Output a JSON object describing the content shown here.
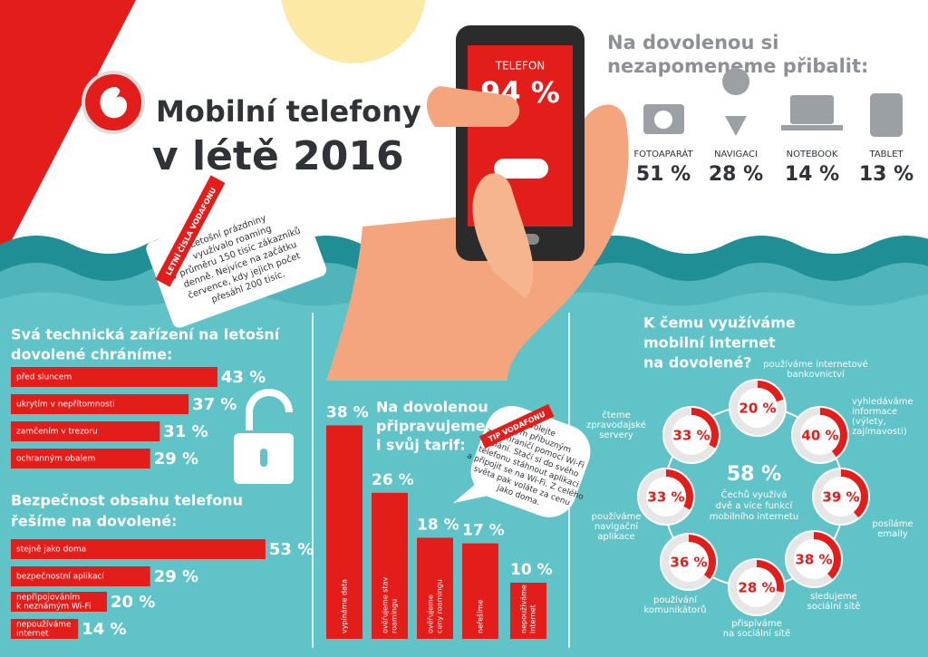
{
  "header": {
    "title_line1": "Mobilní telefony",
    "title_line2": "v létě 2016"
  },
  "phone": {
    "label": "TELEFON",
    "value": 94,
    "value_label": "94 %"
  },
  "packing": {
    "title_line1": "Na dovolenou si",
    "title_line2": "nezapomeneme přibalit:",
    "items": [
      {
        "label": "FOTOAPARÁT",
        "value": 51,
        "value_label": "51 %"
      },
      {
        "label": "NAVIGACI",
        "value": 28,
        "value_label": "28 %"
      },
      {
        "label": "NOTEBOOK",
        "value": 14,
        "value_label": "14 %"
      },
      {
        "label": "TABLET",
        "value": 13,
        "value_label": "13 %"
      }
    ]
  },
  "roaming_note": {
    "tag": "LETNÍ ČÍSLA VODAFONU",
    "lines": [
      "Letošní prázdniny",
      "využívalo roaming",
      "v průměru 150 tisíc zákazníků",
      "denně. Nejvíce na začátku",
      "července, kdy jejich počet",
      "přesáhl 200 tisíc."
    ]
  },
  "protection": {
    "title_line1": "Svá technická zařízení na letošní",
    "title_line2": "dovolené chráníme:",
    "items": [
      {
        "label": [
          "před sluncem"
        ],
        "value": 43,
        "value_label": "43 %"
      },
      {
        "label": [
          "ukrytím v nepřítomnosti"
        ],
        "value": 37,
        "value_label": "37 %"
      },
      {
        "label": [
          "zamčením v trezoru"
        ],
        "value": 31,
        "value_label": "31 %"
      },
      {
        "label": [
          "ochranným obalem"
        ],
        "value": 29,
        "value_label": "29 %"
      }
    ]
  },
  "security": {
    "title_line1": "Bezpečnost obsahu telefonu",
    "title_line2": "řešíme na dovolené:",
    "items": [
      {
        "label": [
          "stejně jako doma"
        ],
        "value": 53,
        "value_label": "53 %"
      },
      {
        "label": [
          "bezpečnostní aplikací"
        ],
        "value": 29,
        "value_label": "29 %"
      },
      {
        "label": [
          "nepřipojováním",
          "k neznámým Wi-Fi"
        ],
        "value": 20,
        "value_label": "20 %"
      },
      {
        "label": [
          "nepoužíváme",
          "internet"
        ],
        "value": 14,
        "value_label": "14 %"
      }
    ]
  },
  "tariff": {
    "title_lines": [
      "Na dovolenou",
      "připravujeme",
      "i svůj tarif:"
    ],
    "items": [
      {
        "label": [
          "vypínáme data"
        ],
        "value": 38,
        "value_label": "38 %"
      },
      {
        "label": [
          "ověřujeme stav",
          "roamingu"
        ],
        "value": 26,
        "value_label": "26 %"
      },
      {
        "label": [
          "ověřujeme",
          "ceny roamingu"
        ],
        "value": 18,
        "value_label": "18 %"
      },
      {
        "label": [
          "neřešíme"
        ],
        "value": 17,
        "value_label": "17 %"
      },
      {
        "label": [
          "nepoužíváme",
          "internet"
        ],
        "value": 10,
        "value_label": "10 %"
      }
    ]
  },
  "tip": {
    "tag": "TIP VODAFONU",
    "lines": [
      "Volejte",
      "svým příbuzným",
      "ze zahraničí pomocí Wi-Fi",
      "volání. Stačí si do svého",
      "telefonu stáhnout aplikaci",
      "a připojit se na Wi-Fi. Z celého",
      "světa pak voláte za cenu",
      "jako doma."
    ]
  },
  "internet": {
    "title_lines": [
      "K čemu využíváme",
      "mobilní internet",
      "na dovolené?"
    ],
    "center": {
      "value": 58,
      "value_label": "58 %",
      "lines": [
        "Čechů využívá",
        "dvě a více funkcí",
        "mobilního internetu"
      ]
    },
    "items": [
      {
        "label": [
          "používáme internetové",
          "bankovnictví"
        ],
        "value": 20,
        "value_label": "20 %"
      },
      {
        "label": [
          "vyhledáváme",
          "informace",
          "(výlety,",
          "zajímavosti)"
        ],
        "value": 40,
        "value_label": "40 %"
      },
      {
        "label": [
          "posíláme",
          "emaily"
        ],
        "value": 39,
        "value_label": "39 %"
      },
      {
        "label": [
          "sledujeme",
          "sociální sítě"
        ],
        "value": 38,
        "value_label": "38 %"
      },
      {
        "label": [
          "přispíváme",
          "na sociální sítě"
        ],
        "value": 28,
        "value_label": "28 %"
      },
      {
        "label": [
          "používání",
          "komunikátorů"
        ],
        "value": 36,
        "value_label": "36 %"
      },
      {
        "label": [
          "používáme",
          "navigační",
          "aplikace"
        ],
        "value": 33,
        "value_label": "33 %"
      },
      {
        "label": [
          "čteme",
          "zpravodajské",
          "servery"
        ],
        "value": 33,
        "value_label": "33 %"
      }
    ]
  }
}
